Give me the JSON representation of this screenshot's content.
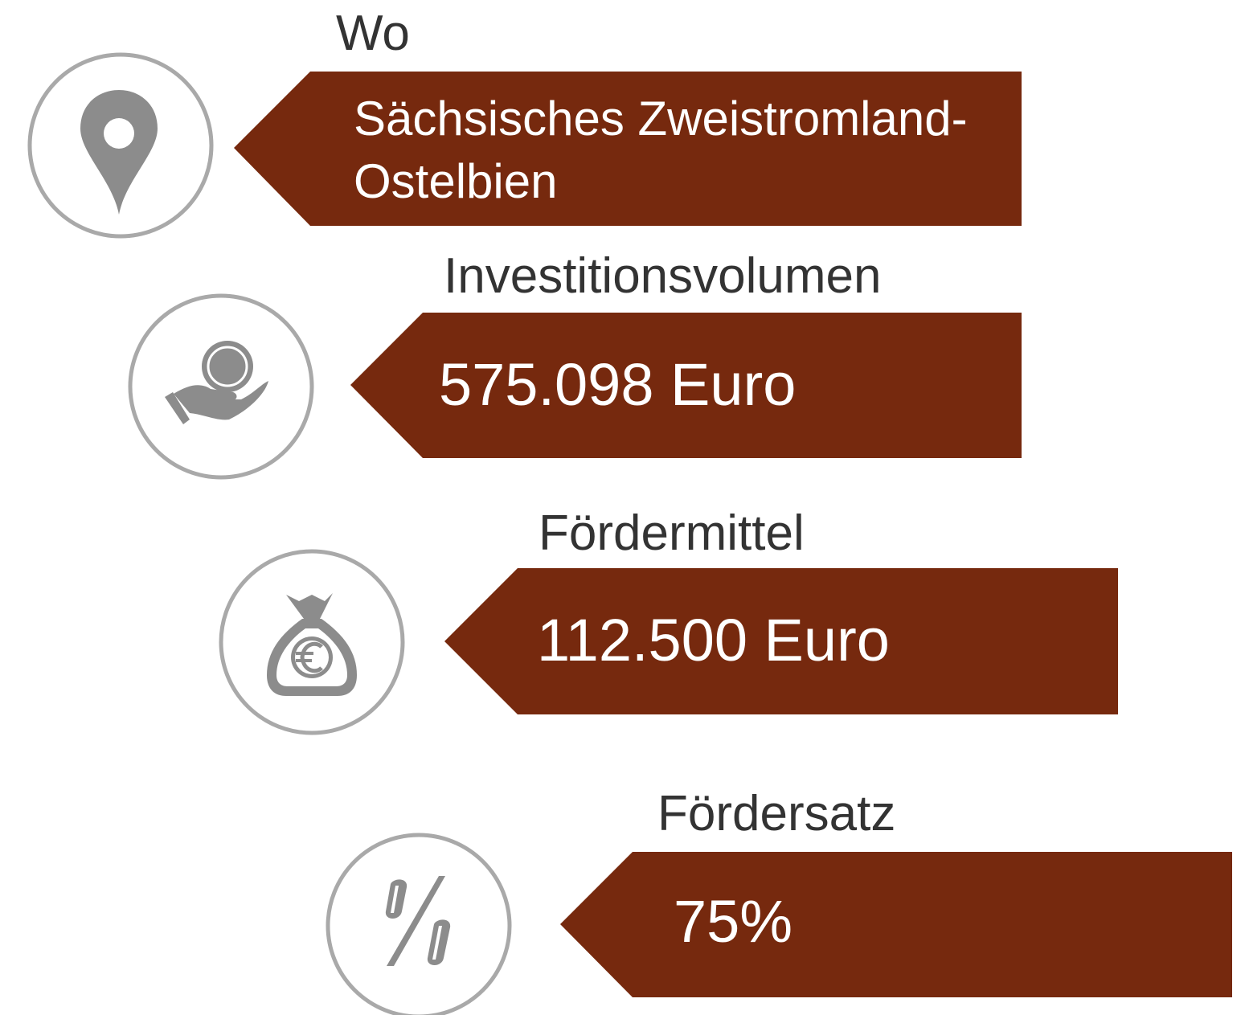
{
  "items": [
    {
      "label": "Wo",
      "value_lines": [
        "Sächsisches Zweistromland-",
        "Ostelbien"
      ]
    },
    {
      "label": "Investitionsvolumen",
      "value_lines": [
        "575.098 Euro"
      ]
    },
    {
      "label": "Fördermittel",
      "value_lines": [
        "112.500 Euro"
      ]
    },
    {
      "label": "Fördersatz",
      "value_lines": [
        "75%"
      ]
    }
  ]
}
